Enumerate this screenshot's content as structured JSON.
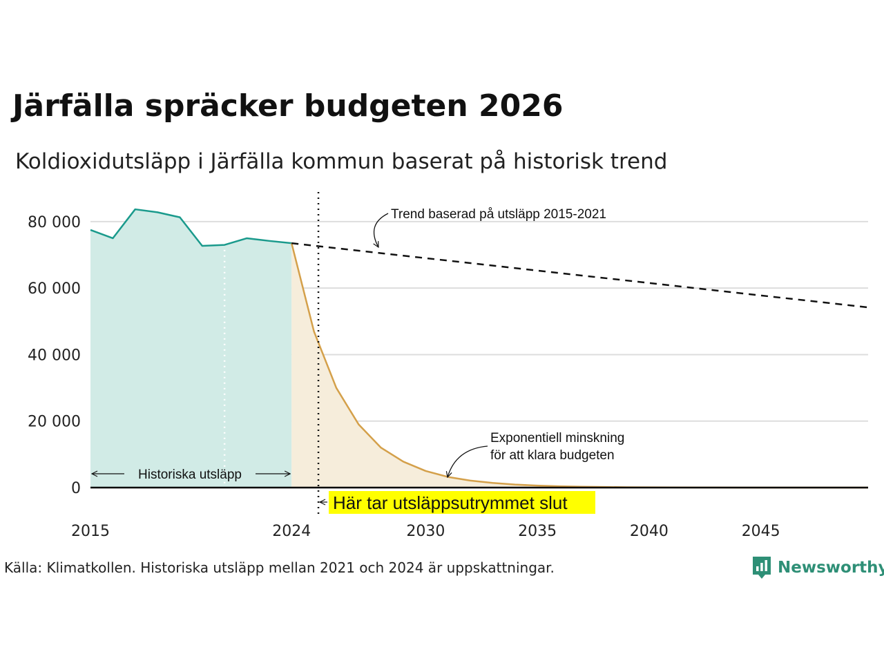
{
  "title": "Järfälla spräcker budgeten 2026",
  "subtitle": "Koldioxidutsläpp i Järfälla kommun baserat på historisk trend",
  "source": "Källa: Klimatkollen. Historiska utsläpp mellan 2021 och 2024 är uppskattningar.",
  "logo": {
    "text": "Newsworthy",
    "icon": "newsworthy-logo-icon",
    "color": "#2e8f76"
  },
  "colors": {
    "historical": "#1a9a8c",
    "historical_fill": "#d1ebe6",
    "budget": "#d4a04a",
    "budget_fill": "#f6eddb",
    "trend": "#111111",
    "highlight": "#ffff00",
    "grid": "#dddddd"
  },
  "annotations": {
    "trend_label": "Trend baserad på utsläpp 2015-2021",
    "exp_label_line1": "Exponentiell minskning",
    "exp_label_line2": "för att klara budgeten",
    "historical_label": "Historiska utsläpp",
    "budget_end_label": "Här tar utsläppsutrymmet slut"
  },
  "chart_data": {
    "type": "line",
    "title": "Järfälla spräcker budgeten 2026",
    "subtitle": "Koldioxidutsläpp i Järfälla kommun baserat på historisk trend",
    "xlabel": "",
    "ylabel": "",
    "xlim": [
      2015,
      2049.8
    ],
    "ylim": [
      0,
      86000
    ],
    "x_ticks": [
      2015,
      2024,
      2030,
      2035,
      2040,
      2045
    ],
    "y_ticks": [
      0,
      20000,
      40000,
      60000,
      80000
    ],
    "y_tick_labels": [
      "0",
      "20 000",
      "40 000",
      "60 000",
      "80 000"
    ],
    "grid": true,
    "legend": "none",
    "budget_end_year": 2025.2,
    "estimate_start_year": 2021,
    "series": [
      {
        "key": "historical",
        "x": [
          2015,
          2016,
          2017,
          2018,
          2019,
          2020,
          2021,
          2022,
          2023,
          2024
        ],
        "y": [
          77500,
          75000,
          83700,
          82800,
          81300,
          72700,
          73000,
          75000,
          74200,
          73500
        ]
      },
      {
        "key": "trend",
        "style": "dashed",
        "x": [
          2024,
          2049.8
        ],
        "y": [
          73500,
          54200
        ]
      },
      {
        "key": "budget",
        "x": [
          2024,
          2025,
          2026,
          2027,
          2028,
          2029,
          2030,
          2031,
          2032,
          2033,
          2034,
          2035,
          2036,
          2037,
          2038,
          2039,
          2040,
          2041,
          2042,
          2043,
          2044,
          2045,
          2046,
          2047,
          2048,
          2049,
          2049.8
        ],
        "y": [
          73500,
          47000,
          30000,
          19000,
          12000,
          7800,
          5000,
          3200,
          2100,
          1400,
          900,
          600,
          400,
          260,
          170,
          110,
          70,
          45,
          30,
          20,
          12,
          8,
          5,
          3,
          2,
          1,
          1
        ]
      }
    ]
  }
}
